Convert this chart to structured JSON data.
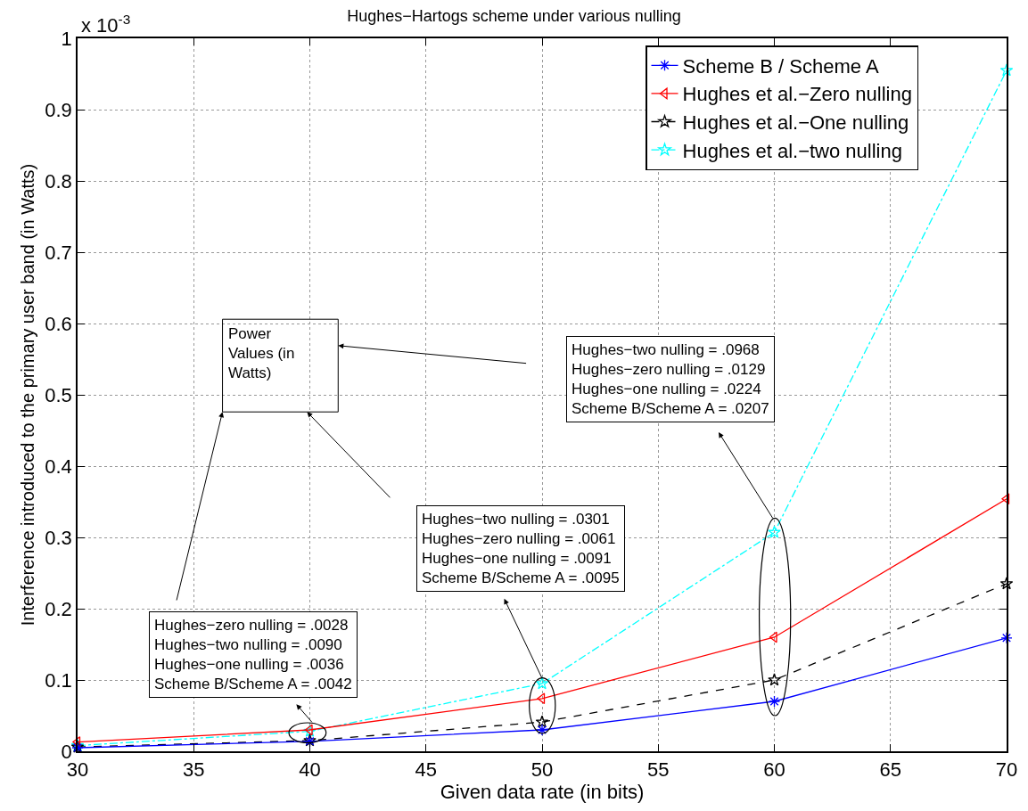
{
  "chart_data": {
    "type": "line",
    "title": "Hughes−Hartogs scheme under various nulling",
    "xlabel": "Given data rate (in bits)",
    "ylabel": "Interference introduced to the primary user band (in Watts)",
    "x": [
      30,
      40,
      50,
      60,
      70
    ],
    "series": [
      {
        "name": "Scheme B / Scheme A",
        "color": "#0000ff",
        "marker": "cross",
        "line_style": "solid",
        "values": [
          0.005,
          0.014,
          0.03,
          0.07,
          0.159
        ]
      },
      {
        "name": "Hughes et al.−Zero nulling",
        "color": "#ff0000",
        "marker": "triangle",
        "line_style": "solid",
        "values": [
          0.013,
          0.03,
          0.074,
          0.16,
          0.354
        ]
      },
      {
        "name": "Hughes et al.−One nulling",
        "color": "#000000",
        "marker": "star",
        "line_style": "dashed",
        "values": [
          0.006,
          0.015,
          0.041,
          0.1,
          0.235
        ]
      },
      {
        "name": "Hughes et al.−two nulling",
        "color": "#00ffff",
        "marker": "star",
        "line_style": "dashed",
        "values": [
          0.008,
          0.028,
          0.095,
          0.307,
          0.955
        ]
      }
    ],
    "xlim": [
      30,
      70
    ],
    "xticks": [
      30,
      35,
      40,
      45,
      50,
      55,
      60,
      65,
      70
    ],
    "ylim": [
      0,
      1
    ],
    "yticks": [
      0,
      0.1,
      0.2,
      0.3,
      0.4,
      0.5,
      0.6,
      0.7,
      0.8,
      0.9,
      1
    ],
    "grid": true,
    "legend": "top right",
    "annotations": [
      "x 10$^{-3}$",
      "Power\nValues (in\nWatts)",
      "Hughes−zero nulling = .0028\nHughes−two nulling = .0090\nHughes−one nulling = .0036\nScheme B/Scheme A = .0042",
      "Hughes−two nulling = .0301\nHughes−zero nulling = .0061\nHughes−one nulling = .0091\nScheme B/Scheme A = .0095",
      "Hughes−two nulling = .0968\nHughes−zero nulling = .0129\nHughes−one nulling = .0224\nScheme B/Scheme A = .0207"
    ]
  }
}
